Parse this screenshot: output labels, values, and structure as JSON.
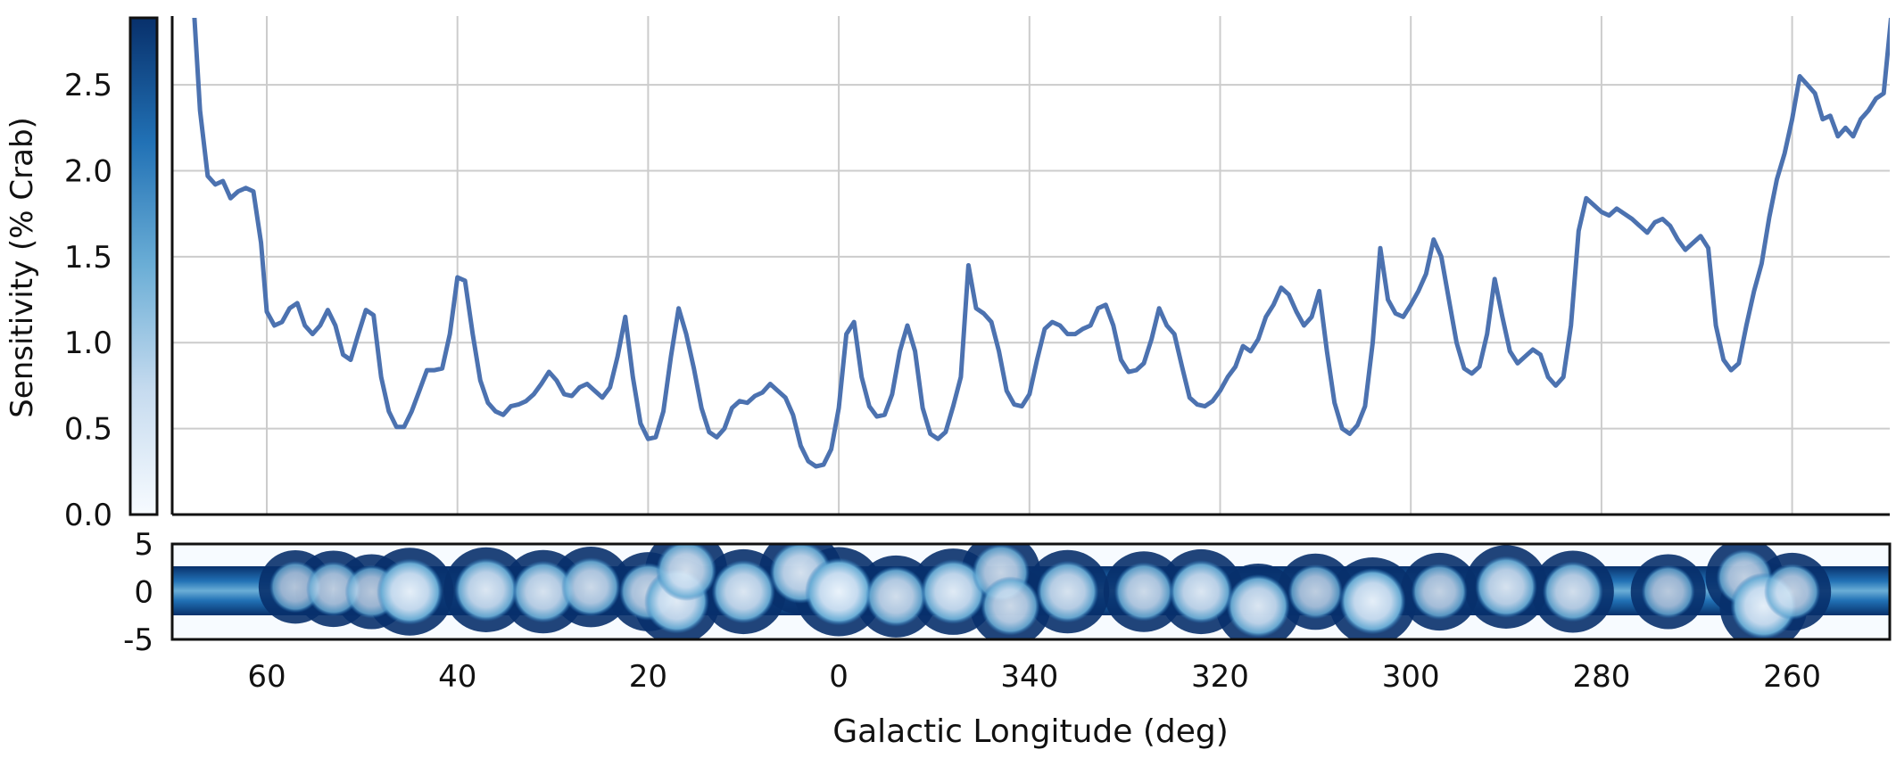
{
  "chart_data": [
    {
      "type": "line",
      "ylabel": "Sensitivity (% Crab)",
      "xlabel": "",
      "x_axis_note": "Galactic longitude wraps at 0: left edge ≈ 70, decreasing to 0 then 360 down to ≈ 250",
      "ylim": [
        0.0,
        2.9
      ],
      "xlim_unwrapped": [
        -70,
        110
      ],
      "yticks": [
        "0.0",
        "0.5",
        "1.0",
        "1.5",
        "2.0",
        "2.5"
      ],
      "grid": true,
      "line_color": "#4c72b0",
      "series": [
        {
          "name": "",
          "x": [
            67.6,
            67.0,
            66.2,
            65.4,
            64.6,
            63.8,
            63.0,
            62.2,
            61.4,
            60.6,
            60.0,
            59.2,
            58.4,
            57.6,
            56.8,
            56.0,
            55.2,
            54.4,
            53.6,
            52.8,
            52.0,
            51.2,
            50.4,
            49.6,
            48.8,
            48.0,
            47.2,
            46.4,
            45.6,
            44.8,
            44.0,
            43.2,
            42.4,
            41.6,
            40.8,
            40.0,
            39.2,
            38.4,
            37.6,
            36.8,
            36.0,
            35.2,
            34.4,
            33.6,
            32.8,
            32.0,
            31.2,
            30.4,
            29.6,
            28.8,
            28.0,
            27.2,
            26.4,
            25.6,
            24.8,
            24.0,
            23.2,
            22.4,
            21.6,
            20.8,
            20.0,
            19.2,
            18.4,
            17.6,
            16.8,
            16.0,
            15.2,
            14.4,
            13.6,
            12.8,
            12.0,
            11.2,
            10.4,
            9.6,
            8.8,
            8.0,
            7.2,
            6.4,
            5.6,
            4.8,
            4.0,
            3.2,
            2.4,
            1.6,
            0.8,
            0.0,
            -0.8,
            -1.6,
            -2.4,
            -3.2,
            -4.0,
            -4.8,
            -5.6,
            -6.4,
            -7.2,
            -8.0,
            -8.8,
            -9.6,
            -10.4,
            -11.2,
            -12.0,
            -12.8,
            -13.6,
            -14.4,
            -15.2,
            -16.0,
            -16.8,
            -17.6,
            -18.4,
            -19.2,
            -20.0,
            -20.8,
            -21.6,
            -22.4,
            -23.2,
            -24.0,
            -24.8,
            -25.6,
            -26.4,
            -27.2,
            -28.0,
            -28.8,
            -29.6,
            -30.4,
            -31.2,
            -32.0,
            -32.8,
            -33.6,
            -34.4,
            -35.2,
            -36.0,
            -36.8,
            -37.6,
            -38.4,
            -39.2,
            -40.0,
            -40.8,
            -41.6,
            -42.4,
            -43.2,
            -44.0,
            -44.8,
            -45.6,
            -46.4,
            -47.2,
            -48.0,
            -48.8,
            -49.6,
            -50.4,
            -51.2,
            -52.0,
            -52.8,
            -53.6,
            -54.4,
            -55.2,
            -56.0,
            -56.8,
            -57.6,
            -58.4,
            -59.2,
            -60.0,
            -60.8,
            -61.6,
            -62.4,
            -63.2,
            -64.0,
            -64.8,
            -65.6,
            -66.4,
            -67.2,
            -68.0,
            -68.8,
            -69.6,
            -70.4,
            -71.2,
            -72.0,
            -72.8,
            -73.6,
            -74.4,
            -75.2,
            -76.0,
            -76.8,
            -77.6,
            -78.4,
            -79.2,
            -80.0,
            -80.8,
            -81.6,
            -82.4,
            -83.2,
            -84.0,
            -84.8,
            -85.6,
            -86.4,
            -87.2,
            -88.0,
            -88.8,
            -89.6,
            -90.4,
            -91.2,
            -92.0,
            -92.8,
            -93.6,
            -94.4,
            -95.2,
            -96.0,
            -96.8,
            -97.6,
            -98.4,
            -99.2,
            -100.0,
            -100.8,
            -101.6,
            -102.4,
            -103.2,
            -104.0,
            -104.8,
            -105.6,
            -106.4,
            -107.2,
            -108.0,
            -108.8,
            -109.6,
            -110.4
          ],
          "y": [
            2.9,
            2.35,
            1.97,
            1.92,
            1.94,
            1.84,
            1.88,
            1.9,
            1.88,
            1.58,
            1.18,
            1.1,
            1.12,
            1.2,
            1.23,
            1.1,
            1.05,
            1.1,
            1.19,
            1.1,
            0.93,
            0.9,
            1.05,
            1.19,
            1.16,
            0.8,
            0.6,
            0.51,
            0.51,
            0.6,
            0.72,
            0.84,
            0.84,
            0.85,
            1.05,
            1.38,
            1.36,
            1.05,
            0.78,
            0.65,
            0.6,
            0.58,
            0.63,
            0.64,
            0.66,
            0.7,
            0.76,
            0.83,
            0.78,
            0.7,
            0.69,
            0.74,
            0.76,
            0.72,
            0.68,
            0.74,
            0.92,
            1.15,
            0.8,
            0.53,
            0.44,
            0.45,
            0.6,
            0.92,
            1.2,
            1.05,
            0.85,
            0.62,
            0.48,
            0.45,
            0.5,
            0.62,
            0.66,
            0.65,
            0.69,
            0.71,
            0.76,
            0.72,
            0.68,
            0.58,
            0.4,
            0.31,
            0.28,
            0.29,
            0.38,
            0.62,
            1.05,
            1.12,
            0.8,
            0.63,
            0.57,
            0.58,
            0.7,
            0.95,
            1.1,
            0.95,
            0.62,
            0.47,
            0.44,
            0.48,
            0.63,
            0.8,
            1.45,
            1.2,
            1.17,
            1.12,
            0.95,
            0.72,
            0.64,
            0.63,
            0.7,
            0.9,
            1.08,
            1.12,
            1.1,
            1.05,
            1.05,
            1.08,
            1.1,
            1.2,
            1.22,
            1.1,
            0.9,
            0.83,
            0.84,
            0.88,
            1.02,
            1.2,
            1.1,
            1.05,
            0.86,
            0.68,
            0.64,
            0.63,
            0.66,
            0.72,
            0.8,
            0.86,
            0.98,
            0.95,
            1.02,
            1.15,
            1.22,
            1.32,
            1.28,
            1.18,
            1.1,
            1.15,
            1.3,
            0.95,
            0.65,
            0.5,
            0.47,
            0.52,
            0.63,
            1.0,
            1.55,
            1.25,
            1.17,
            1.15,
            1.22,
            1.3,
            1.4,
            1.6,
            1.5,
            1.25,
            1.0,
            0.85,
            0.82,
            0.86,
            1.05,
            1.37,
            1.15,
            0.95,
            0.88,
            0.92,
            0.96,
            0.93,
            0.8,
            0.75,
            0.8,
            1.1,
            1.65,
            1.84,
            1.8,
            1.76,
            1.74,
            1.78,
            1.75,
            1.72,
            1.68,
            1.64,
            1.7,
            1.72,
            1.68,
            1.6,
            1.54,
            1.58,
            1.62,
            1.55,
            1.1,
            0.9,
            0.84,
            0.88,
            1.1,
            1.3,
            1.46,
            1.73,
            1.95,
            2.1,
            2.3,
            2.55,
            2.5,
            2.45,
            2.3,
            2.32,
            2.2,
            2.25,
            2.2,
            2.3,
            2.35,
            2.42,
            2.45,
            2.9
          ]
        }
      ]
    },
    {
      "type": "heatmap",
      "xlabel": "Galactic Longitude (deg)",
      "ylabel": "",
      "ylim": [
        -5,
        5
      ],
      "yticks": [
        "5",
        "0",
        "-5"
      ],
      "xticks": [
        "60",
        "40",
        "20",
        "0",
        "340",
        "320",
        "300",
        "280",
        "260"
      ],
      "colormap": "Blues",
      "band_center_color": "#deebf7",
      "band_edge_color": "#08306b",
      "hotspots": [
        {
          "l": 57,
          "b": 0.5,
          "v": 0.45
        },
        {
          "l": 53,
          "b": 0.3,
          "v": 0.55
        },
        {
          "l": 49,
          "b": 0.0,
          "v": 0.5
        },
        {
          "l": 45,
          "b": 0.0,
          "v": 0.95
        },
        {
          "l": 37,
          "b": 0.2,
          "v": 0.85
        },
        {
          "l": 31,
          "b": 0.0,
          "v": 0.8
        },
        {
          "l": 26,
          "b": 0.5,
          "v": 0.7
        },
        {
          "l": 20,
          "b": 0.0,
          "v": 0.65
        },
        {
          "l": 17,
          "b": -1.0,
          "v": 0.9
        },
        {
          "l": 16,
          "b": 2.2,
          "v": 0.75
        },
        {
          "l": 10,
          "b": 0.0,
          "v": 0.85
        },
        {
          "l": 4,
          "b": 2.0,
          "v": 0.8
        },
        {
          "l": 0,
          "b": 0.0,
          "v": 1.0
        },
        {
          "l": -6,
          "b": -0.5,
          "v": 0.75
        },
        {
          "l": -12,
          "b": 0.0,
          "v": 0.9
        },
        {
          "l": -17,
          "b": 2.0,
          "v": 0.65
        },
        {
          "l": -18,
          "b": -1.5,
          "v": 0.7
        },
        {
          "l": -24,
          "b": 0.0,
          "v": 0.8
        },
        {
          "l": -32,
          "b": 0.0,
          "v": 0.7
        },
        {
          "l": -38,
          "b": 0.0,
          "v": 0.85
        },
        {
          "l": -44,
          "b": -1.5,
          "v": 0.85
        },
        {
          "l": -50,
          "b": 0.0,
          "v": 0.55
        },
        {
          "l": -56,
          "b": -1.0,
          "v": 0.95
        },
        {
          "l": -63,
          "b": 0.0,
          "v": 0.6
        },
        {
          "l": -70,
          "b": 0.5,
          "v": 0.8
        },
        {
          "l": -77,
          "b": 0.0,
          "v": 0.75
        },
        {
          "l": -87,
          "b": 0.0,
          "v": 0.5
        },
        {
          "l": -95,
          "b": 1.5,
          "v": 0.6
        },
        {
          "l": -97,
          "b": -1.5,
          "v": 0.95
        },
        {
          "l": -100,
          "b": 0.0,
          "v": 0.6
        }
      ]
    }
  ],
  "colorbar": {
    "type": "colorbar",
    "colormap": "Blues",
    "top_color": "#08306b",
    "bottom_color": "#f7fbff"
  }
}
